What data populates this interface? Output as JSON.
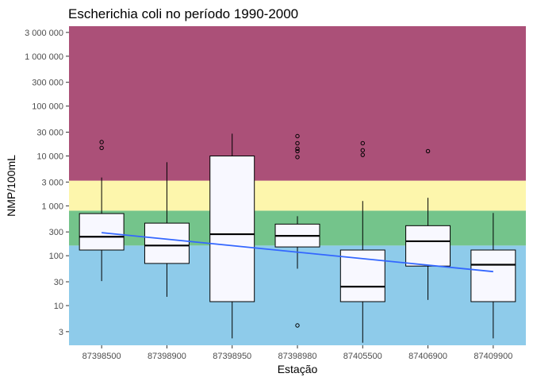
{
  "chart_data": {
    "type": "boxplot",
    "title": "Escherichia coli no período 1990-2000",
    "xlabel": "Estação",
    "ylabel": "NMP/100mL",
    "y_scale": "log10",
    "ylim": [
      1.6,
      4000000
    ],
    "y_ticks": [
      3,
      10,
      30,
      100,
      300,
      1000,
      3000,
      10000,
      30000,
      100000,
      300000,
      1000000,
      3000000
    ],
    "y_tick_labels": [
      "3",
      "10",
      "30",
      "100",
      "300",
      "1 000",
      "3 000",
      "10 000",
      "30 000",
      "100 000",
      "300 000",
      "1 000 000",
      "3 000 000"
    ],
    "categories": [
      "87398500",
      "87398900",
      "87398950",
      "87398980",
      "87405500",
      "87406900",
      "87409900"
    ],
    "background_bands": [
      {
        "from": 1.6,
        "to": 160,
        "color": "#8ecbea"
      },
      {
        "from": 160,
        "to": 800,
        "color": "#74c48b"
      },
      {
        "from": 800,
        "to": 3200,
        "color": "#fdf6ac"
      },
      {
        "from": 3200,
        "to": 4000000,
        "color": "#ab5078"
      }
    ],
    "boxes": [
      {
        "category": "87398500",
        "whisker_low": 31,
        "q1": 130,
        "median": 240,
        "q3": 700,
        "whisker_high": 3700,
        "outliers": [
          14500,
          19000
        ]
      },
      {
        "category": "87398900",
        "whisker_low": 15,
        "q1": 70,
        "median": 160,
        "q3": 450,
        "whisker_high": 7500,
        "outliers": []
      },
      {
        "category": "87398950",
        "whisker_low": 2.2,
        "q1": 12,
        "median": 270,
        "q3": 10000,
        "whisker_high": 28000,
        "outliers": []
      },
      {
        "category": "87398980",
        "whisker_low": 55,
        "q1": 150,
        "median": 250,
        "q3": 430,
        "whisker_high": 620,
        "outliers": [
          4,
          9500,
          12500,
          14000,
          18000,
          25000
        ]
      },
      {
        "category": "87405500",
        "whisker_low": 1.8,
        "q1": 12,
        "median": 24,
        "q3": 130,
        "whisker_high": 1250,
        "outliers": [
          10500,
          13000,
          18000
        ]
      },
      {
        "category": "87406900",
        "whisker_low": 13,
        "q1": 62,
        "median": 195,
        "q3": 400,
        "whisker_high": 1450,
        "outliers": [
          12500
        ]
      },
      {
        "category": "87409900",
        "whisker_low": 2.2,
        "q1": 12,
        "median": 66,
        "q3": 130,
        "whisker_high": 720,
        "outliers": []
      }
    ],
    "trend_line": {
      "color": "#3366ff",
      "x": [
        "87398500",
        "87409900"
      ],
      "y": [
        290,
        48
      ]
    },
    "colors": {
      "box_fill": "#f8f8ff",
      "box_stroke": "#000000",
      "axis_text": "#4d4d4d"
    }
  }
}
